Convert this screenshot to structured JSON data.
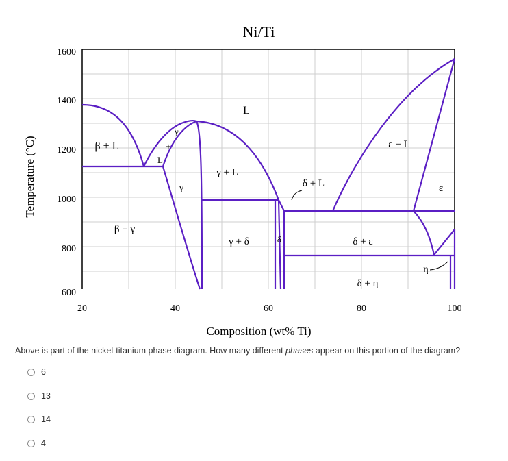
{
  "diagram": {
    "title": "Ni/Ti",
    "x_axis_label": "Composition (wt% Ti)",
    "y_axis_label": "Temperature (°C)",
    "x_ticks": [
      "20",
      "40",
      "60",
      "80",
      "100"
    ],
    "y_ticks": [
      "1600",
      "1400",
      "1200",
      "1000",
      "800",
      "600"
    ],
    "phase_labels": {
      "l_top": "L",
      "beta_l": "β + L",
      "gamma_small": "γ",
      "plus_small": "+",
      "l_small": "L",
      "gamma_region": "γ",
      "gamma_l": "γ + L",
      "delta_l": "δ + L",
      "epsilon_l": "ε + L",
      "epsilon": "ε",
      "beta_gamma": "β + γ",
      "gamma_delta": "γ + δ",
      "delta": "δ",
      "delta_epsilon": "δ + ε",
      "delta_eta": "δ + η",
      "eta": "η"
    },
    "colors": {
      "phase_boundary": "#5b1fc4",
      "frame": "#000000",
      "grid": "#cfcfcf"
    }
  },
  "question": {
    "text_before": "Above is part of the nickel-titanium phase diagram. How many different ",
    "text_emphasis": "phases",
    "text_after": " appear on this portion of the diagram?"
  },
  "options": [
    "6",
    "13",
    "14",
    "4"
  ]
}
